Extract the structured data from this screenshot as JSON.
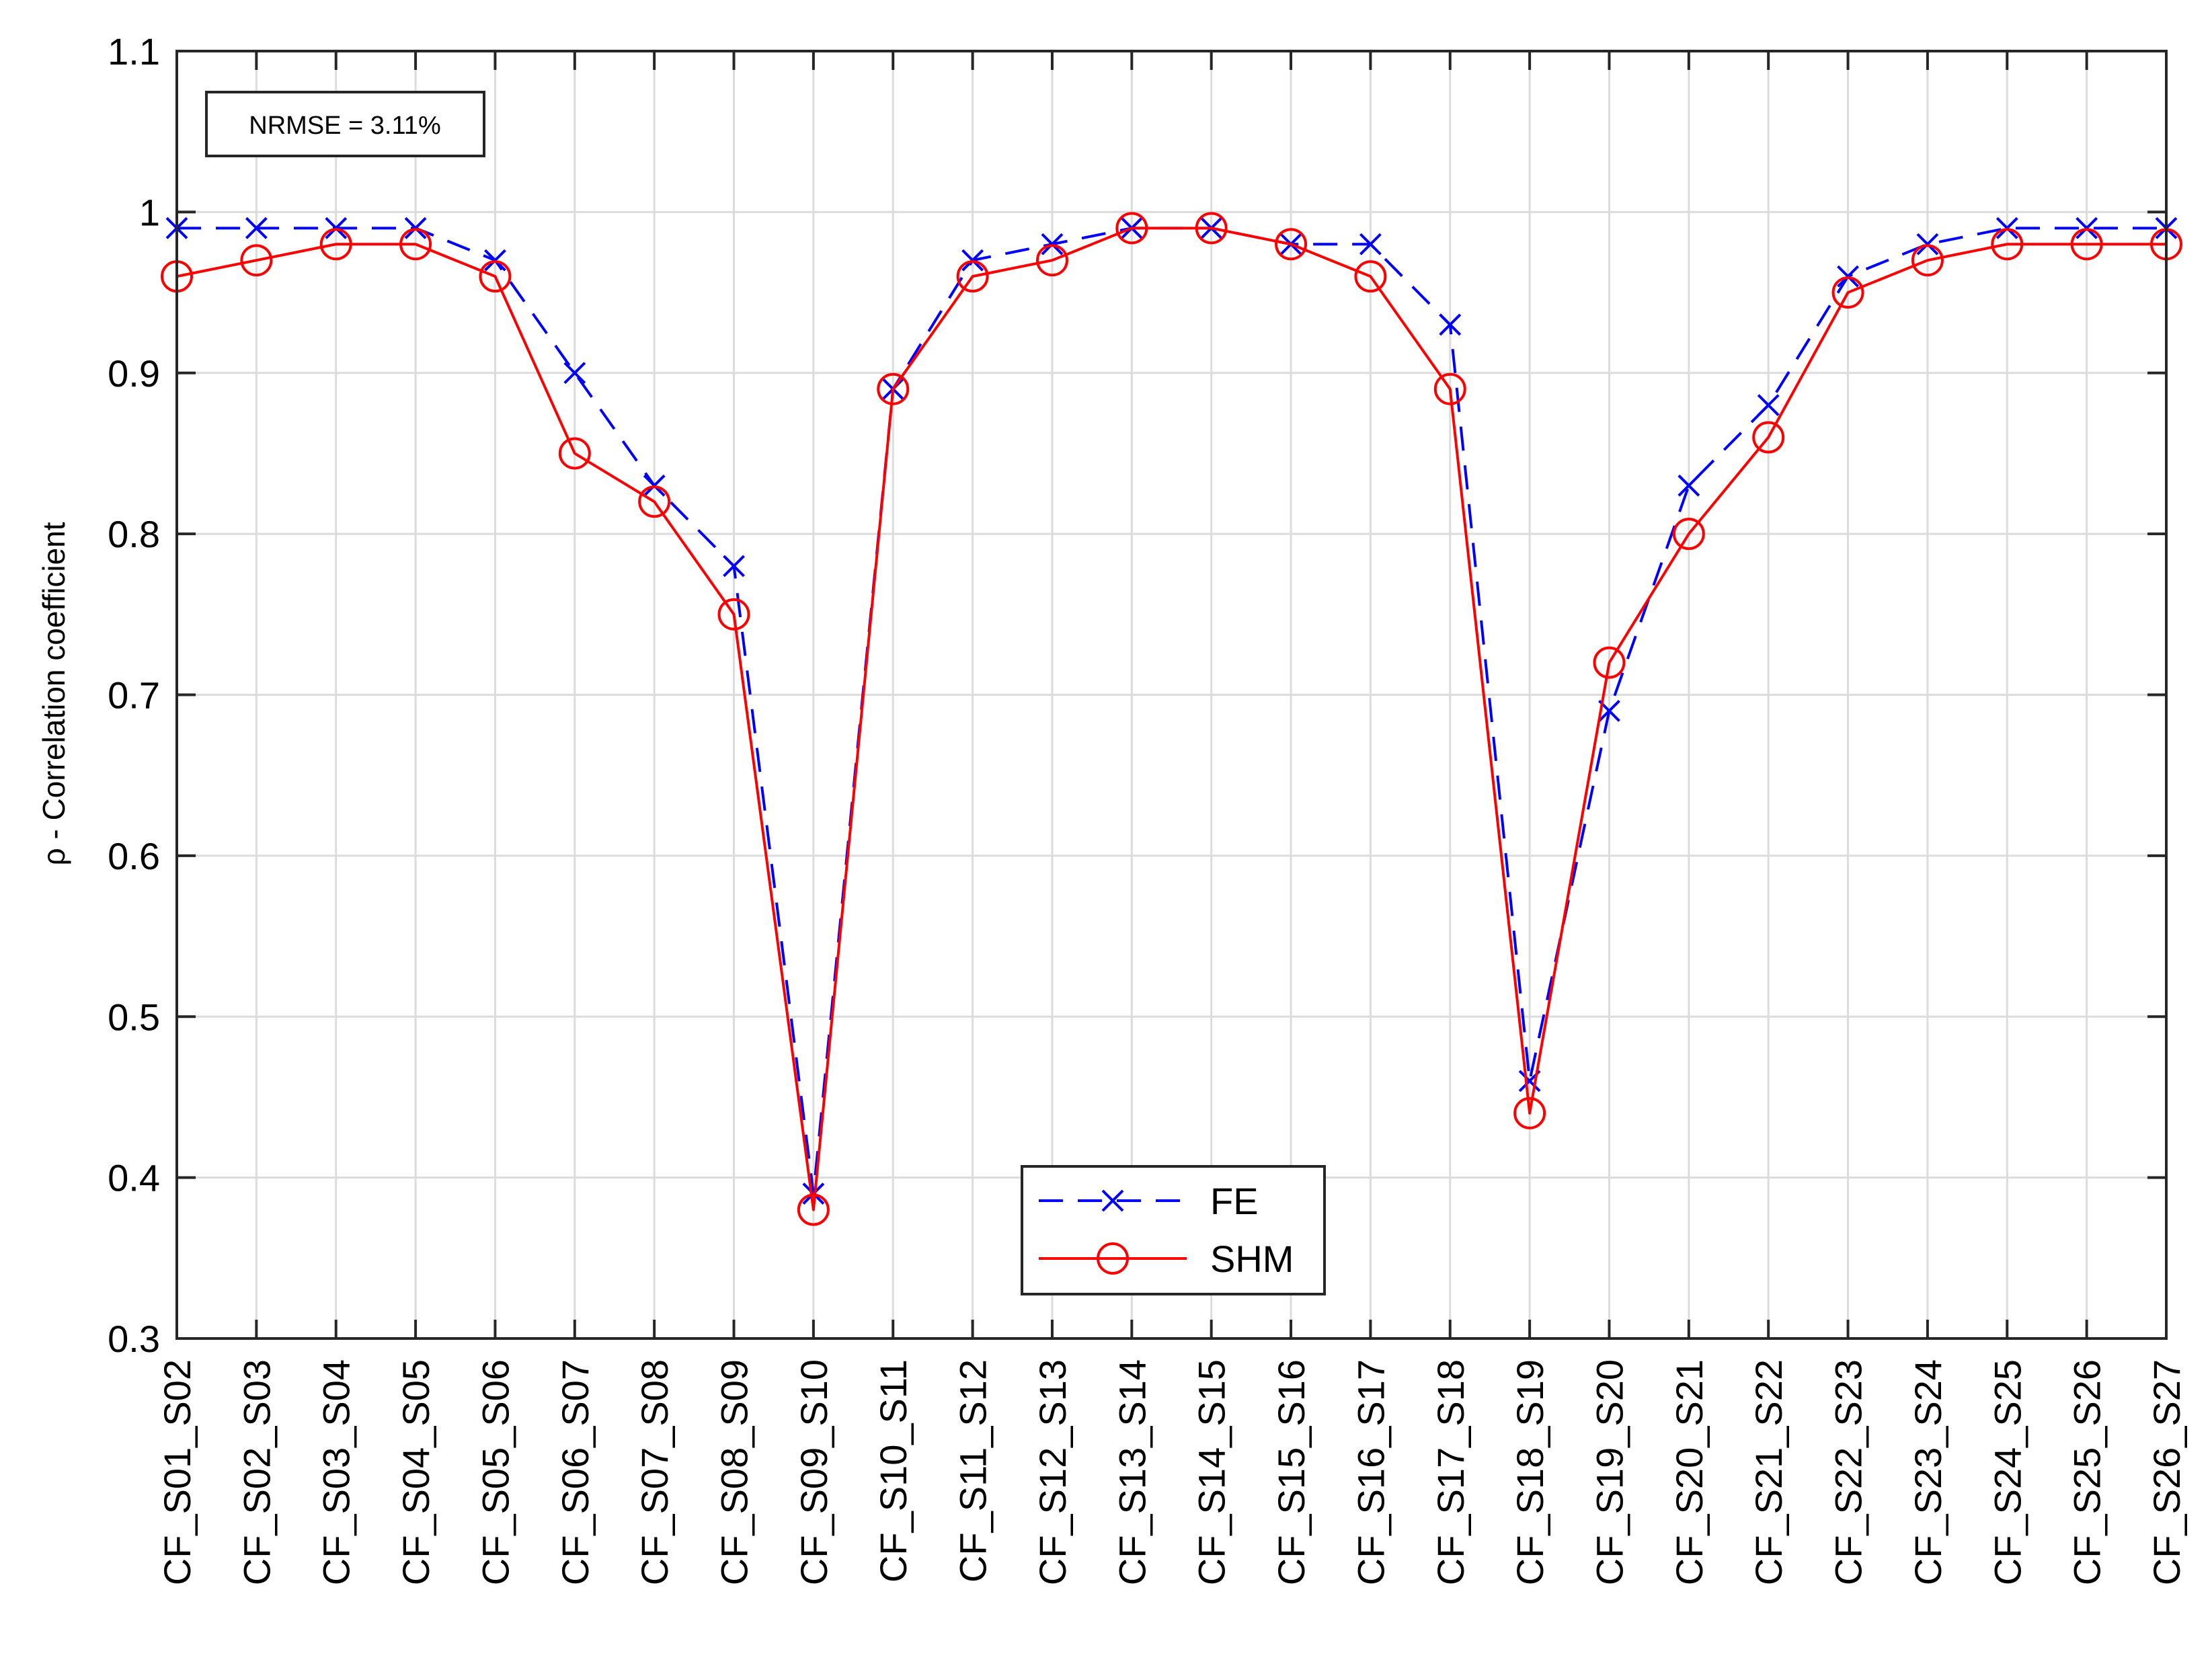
{
  "chart_data": {
    "type": "line",
    "title": "",
    "xlabel": "",
    "ylabel": "ρ - Correlation coefficient",
    "ylim": [
      0.3,
      1.1
    ],
    "yticks": [
      "0.3",
      "0.4",
      "0.5",
      "0.6",
      "0.7",
      "0.8",
      "0.9",
      "1",
      "1.1"
    ],
    "grid": true,
    "legend_position": "bottom-center",
    "annotation": "NRMSE = 3.11%",
    "categories": [
      "CF_S01_S02",
      "CF_S02_S03",
      "CF_S03_S04",
      "CF_S04_S05",
      "CF_S05_S06",
      "CF_S06_S07",
      "CF_S07_S08",
      "CF_S08_S09",
      "CF_S09_S10",
      "CF_S10_S11",
      "CF_S11_S12",
      "CF_S12_S13",
      "CF_S13_S14",
      "CF_S14_S15",
      "CF_S15_S16",
      "CF_S16_S17",
      "CF_S17_S18",
      "CF_S18_S19",
      "CF_S19_S20",
      "CF_S20_S21",
      "CF_S21_S22",
      "CF_S22_S23",
      "CF_S23_S24",
      "CF_S24_S25",
      "CF_S25_S26",
      "CF_S26_S27"
    ],
    "series": [
      {
        "name": "FE",
        "color": "#0000ff",
        "line_style": "dashed",
        "marker": "x",
        "values": [
          0.99,
          0.99,
          0.99,
          0.99,
          0.97,
          0.9,
          0.83,
          0.78,
          0.39,
          0.89,
          0.97,
          0.98,
          0.99,
          0.99,
          0.98,
          0.98,
          0.93,
          0.46,
          0.69,
          0.83,
          0.88,
          0.96,
          0.98,
          0.99,
          0.99,
          0.99
        ]
      },
      {
        "name": "SHM",
        "color": "#ff0000",
        "line_style": "solid",
        "marker": "circle",
        "values": [
          0.96,
          0.97,
          0.98,
          0.98,
          0.96,
          0.85,
          0.82,
          0.75,
          0.38,
          0.89,
          0.96,
          0.97,
          0.99,
          0.99,
          0.98,
          0.96,
          0.89,
          0.44,
          0.72,
          0.8,
          0.86,
          0.95,
          0.97,
          0.98,
          0.98,
          0.98
        ]
      }
    ]
  }
}
